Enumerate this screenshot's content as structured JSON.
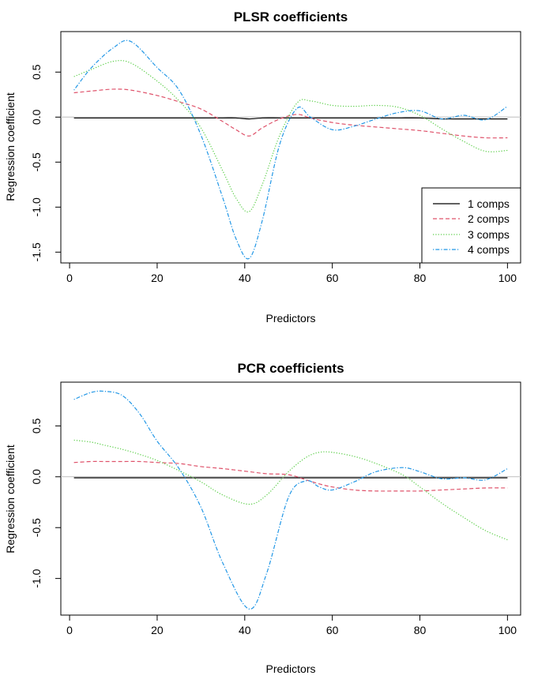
{
  "chart_data": [
    {
      "type": "line",
      "title": "PLSR coefficients",
      "xlabel": "Predictors",
      "ylabel": "Regression coefficient",
      "xlim": [
        -2,
        103
      ],
      "ylim": [
        -1.62,
        0.95
      ],
      "xticks": [
        0,
        20,
        40,
        60,
        80,
        100
      ],
      "yticks": [
        -1.5,
        -1.0,
        -0.5,
        0.0,
        0.5
      ],
      "ytick_labels": [
        "-1.5",
        "-1.0",
        "-0.5",
        "0.0",
        "0.5"
      ],
      "xtick_labels": [
        "0",
        "20",
        "40",
        "60",
        "80",
        "100"
      ],
      "reference_line": 0,
      "legend": "bottom-right",
      "x": [
        1,
        5,
        10,
        14,
        20,
        25,
        30,
        35,
        38,
        41,
        44,
        48,
        52,
        55,
        60,
        65,
        70,
        75,
        80,
        85,
        90,
        95,
        100
      ],
      "series": [
        {
          "name": "1 comps",
          "color": "#000000",
          "dash": "solid",
          "values": [
            -0.01,
            -0.01,
            -0.01,
            -0.01,
            -0.01,
            -0.01,
            -0.01,
            -0.01,
            -0.01,
            -0.02,
            -0.01,
            -0.01,
            -0.01,
            -0.01,
            -0.01,
            -0.01,
            -0.01,
            -0.01,
            -0.01,
            -0.02,
            -0.02,
            -0.02,
            -0.02
          ]
        },
        {
          "name": "2 comps",
          "color": "#DF536B",
          "dash": "dashed",
          "values": [
            0.27,
            0.29,
            0.31,
            0.3,
            0.24,
            0.17,
            0.09,
            -0.05,
            -0.14,
            -0.21,
            -0.12,
            -0.02,
            0.03,
            -0.01,
            -0.06,
            -0.09,
            -0.11,
            -0.13,
            -0.15,
            -0.18,
            -0.21,
            -0.23,
            -0.23
          ]
        },
        {
          "name": "3 comps",
          "color": "#61D04F",
          "dash": "dotted",
          "values": [
            0.45,
            0.53,
            0.62,
            0.6,
            0.4,
            0.18,
            -0.12,
            -0.6,
            -0.9,
            -1.05,
            -0.75,
            -0.2,
            0.16,
            0.18,
            0.13,
            0.12,
            0.13,
            0.11,
            0.02,
            -0.13,
            -0.27,
            -0.38,
            -0.37
          ]
        },
        {
          "name": "4 comps",
          "color": "#2297E6",
          "dash": "dashdot",
          "values": [
            0.3,
            0.55,
            0.77,
            0.84,
            0.55,
            0.3,
            -0.2,
            -0.9,
            -1.35,
            -1.57,
            -1.15,
            -0.3,
            0.1,
            0.0,
            -0.14,
            -0.1,
            -0.02,
            0.05,
            0.07,
            -0.02,
            0.02,
            -0.03,
            0.12
          ]
        }
      ]
    },
    {
      "type": "line",
      "title": "PCR coefficients",
      "xlabel": "Predictors",
      "ylabel": "Regression coefficient",
      "xlim": [
        -2,
        103
      ],
      "ylim": [
        -1.36,
        0.93
      ],
      "xticks": [
        0,
        20,
        40,
        60,
        80,
        100
      ],
      "yticks": [
        -1.0,
        -0.5,
        0.0,
        0.5
      ],
      "ytick_labels": [
        "-1.0",
        "-0.5",
        "0.0",
        "0.5"
      ],
      "xtick_labels": [
        "0",
        "20",
        "40",
        "60",
        "80",
        "100"
      ],
      "reference_line": 0,
      "x": [
        1,
        5,
        8,
        12,
        16,
        20,
        25,
        30,
        35,
        41,
        45,
        50,
        54,
        57,
        60,
        65,
        70,
        76,
        80,
        85,
        90,
        95,
        100
      ],
      "series": [
        {
          "name": "",
          "color": "#000000",
          "dash": "solid",
          "values": [
            -0.01,
            -0.01,
            -0.01,
            -0.01,
            -0.01,
            -0.01,
            -0.01,
            -0.01,
            -0.01,
            -0.01,
            -0.01,
            -0.01,
            -0.01,
            -0.01,
            -0.01,
            -0.01,
            -0.01,
            -0.01,
            -0.01,
            -0.01,
            -0.01,
            -0.01,
            -0.01
          ]
        },
        {
          "name": "",
          "color": "#DF536B",
          "dash": "dashed",
          "values": [
            0.14,
            0.15,
            0.15,
            0.15,
            0.15,
            0.14,
            0.13,
            0.1,
            0.08,
            0.05,
            0.03,
            0.02,
            -0.03,
            -0.07,
            -0.1,
            -0.13,
            -0.14,
            -0.14,
            -0.14,
            -0.13,
            -0.12,
            -0.11,
            -0.11
          ]
        },
        {
          "name": "",
          "color": "#61D04F",
          "dash": "dotted",
          "values": [
            0.36,
            0.34,
            0.31,
            0.27,
            0.22,
            0.16,
            0.06,
            -0.05,
            -0.18,
            -0.27,
            -0.18,
            0.05,
            0.19,
            0.24,
            0.24,
            0.2,
            0.13,
            0.02,
            -0.1,
            -0.26,
            -0.4,
            -0.53,
            -0.62
          ]
        },
        {
          "name": "",
          "color": "#2297E6",
          "dash": "dashdot",
          "values": [
            0.76,
            0.83,
            0.84,
            0.8,
            0.62,
            0.35,
            0.08,
            -0.3,
            -0.85,
            -1.3,
            -0.95,
            -0.2,
            -0.04,
            -0.1,
            -0.13,
            -0.05,
            0.05,
            0.09,
            0.05,
            -0.02,
            -0.01,
            -0.03,
            0.08
          ]
        }
      ]
    }
  ]
}
